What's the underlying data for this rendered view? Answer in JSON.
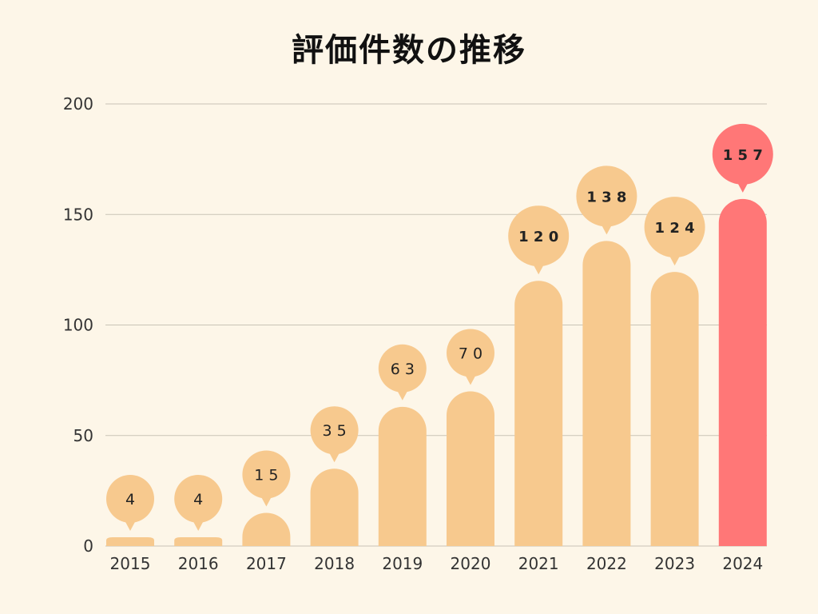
{
  "title": "評価件数の推移",
  "colors": {
    "background": "#fdf6e8",
    "bar": "#f7c98e",
    "highlight": "#ff7777",
    "grid": "#c9c3b6"
  },
  "chart_data": {
    "type": "bar",
    "title": "評価件数の推移",
    "xlabel": "",
    "ylabel": "",
    "ylim": [
      0,
      200
    ],
    "yticks": [
      0,
      50,
      100,
      150,
      200
    ],
    "grid": true,
    "categories": [
      "2015",
      "2016",
      "2017",
      "2018",
      "2019",
      "2020",
      "2021",
      "2022",
      "2023",
      "2024"
    ],
    "values": [
      4,
      4,
      15,
      35,
      63,
      70,
      120,
      138,
      124,
      157
    ],
    "data_labels": [
      "4",
      "4",
      "1 5",
      "3 5",
      "6 3",
      "7 0",
      "1 2 0",
      "1 3 8",
      "1 2 4",
      "1 5 7"
    ],
    "highlight_index": 9
  }
}
